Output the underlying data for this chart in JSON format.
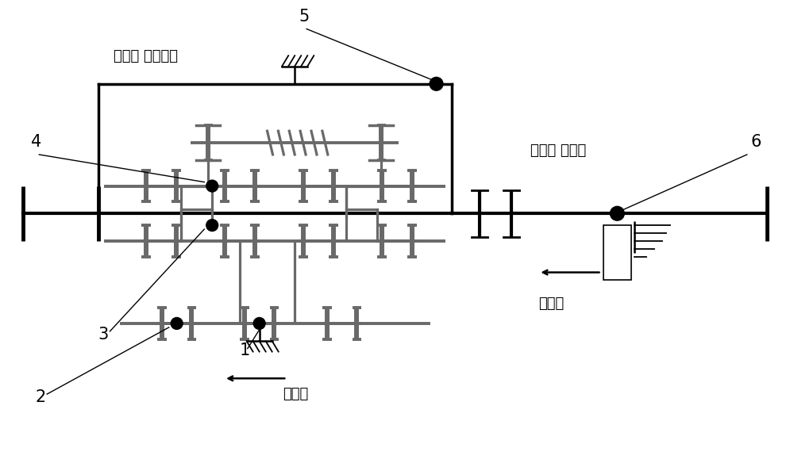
{
  "bg_color": "#ffffff",
  "dk": "#000000",
  "gr": "#696969",
  "text_stage1": "第一级 行星摆线",
  "text_stage2": "第二级 平行齿",
  "text_input": "输入端",
  "text_output": "输出端",
  "label_1": "1",
  "label_2": "2",
  "label_3": "3",
  "label_4": "4",
  "label_5": "5",
  "label_6": "6",
  "fontsize_label": 15,
  "fontsize_text": 13
}
